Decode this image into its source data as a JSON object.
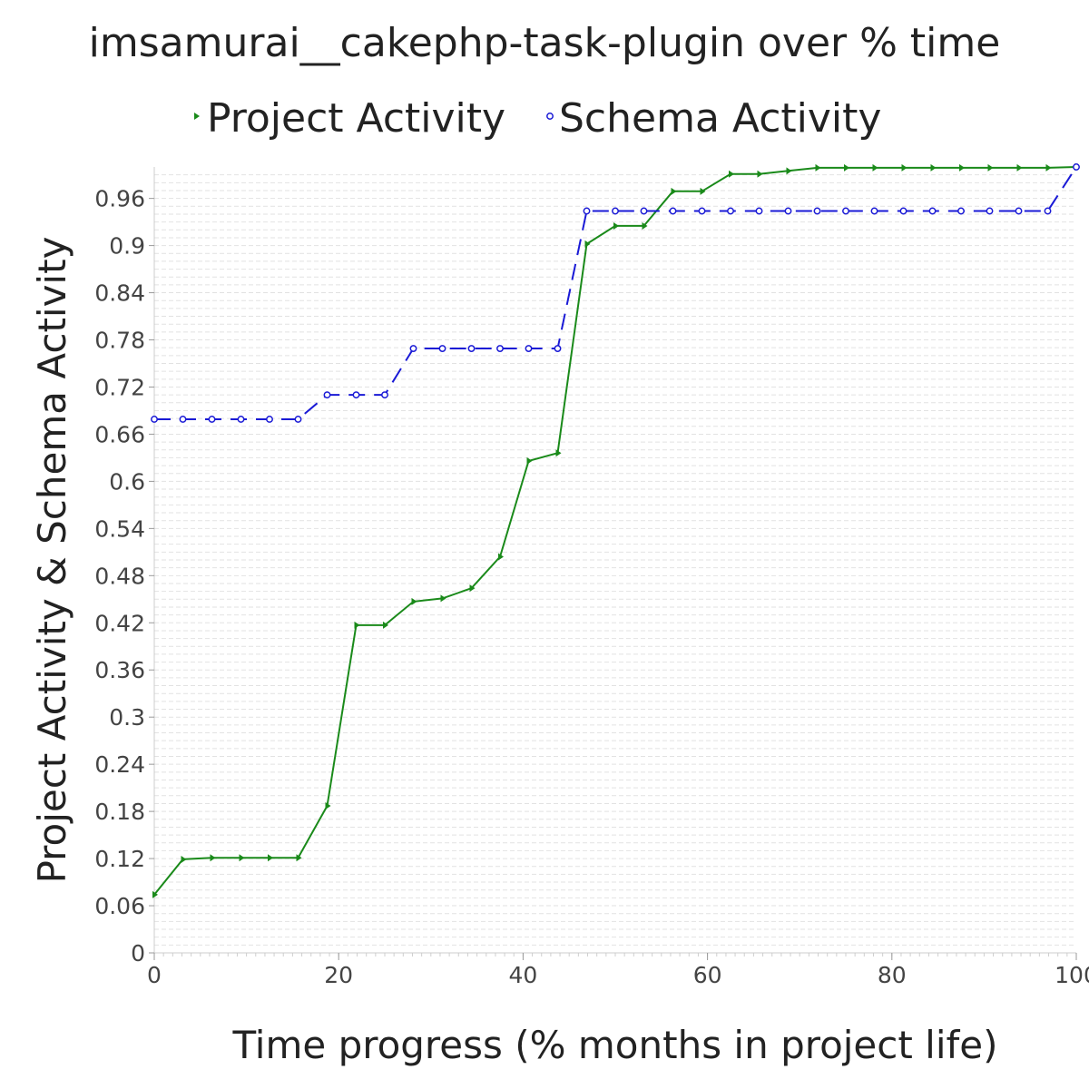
{
  "chart_data": {
    "type": "line",
    "title": "imsamurai__cakephp-task-plugin over % time",
    "xlabel": "Time progress (% months in project life)",
    "ylabel": "Project Activity & Schema Activity",
    "xlim": [
      0,
      100
    ],
    "ylim": [
      0,
      1
    ],
    "x_ticks": [
      "0",
      "20",
      "40",
      "60",
      "80",
      "100"
    ],
    "y_ticks": [
      "0",
      "0.06",
      "0.12",
      "0.18",
      "0.24",
      "0.3",
      "0.36",
      "0.42",
      "0.48",
      "0.54",
      "0.6",
      "0.66",
      "0.72",
      "0.78",
      "0.84",
      "0.9",
      "0.96"
    ],
    "legend_position": "top-center",
    "grid": "horizontal dashed minor lines",
    "series": [
      {
        "name": "Project Activity",
        "color": "#1a8a1a",
        "line_style": "solid",
        "marker": "triangle-right",
        "x": [
          0,
          3.1,
          6.25,
          9.4,
          12.5,
          15.6,
          18.75,
          21.9,
          25,
          28.1,
          31.25,
          34.4,
          37.5,
          40.6,
          43.75,
          46.9,
          50,
          53.1,
          56.25,
          59.4,
          62.5,
          65.6,
          68.75,
          71.9,
          75,
          78.1,
          81.25,
          84.4,
          87.5,
          90.6,
          93.75,
          96.9,
          100
        ],
        "y": [
          0.074,
          0.119,
          0.121,
          0.121,
          0.121,
          0.121,
          0.187,
          0.417,
          0.417,
          0.447,
          0.451,
          0.464,
          0.504,
          0.626,
          0.636,
          0.902,
          0.925,
          0.925,
          0.969,
          0.969,
          0.991,
          0.991,
          0.995,
          0.999,
          0.999,
          0.999,
          0.999,
          0.999,
          0.999,
          0.999,
          0.999,
          0.999,
          1.0
        ]
      },
      {
        "name": "Schema Activity",
        "color": "#1a1ad6",
        "line_style": "dashed",
        "marker": "circle",
        "x": [
          0,
          3.1,
          6.25,
          9.4,
          12.5,
          15.6,
          18.75,
          21.9,
          25,
          28.1,
          31.25,
          34.4,
          37.5,
          40.6,
          43.75,
          46.9,
          50,
          53.1,
          56.25,
          59.4,
          62.5,
          65.6,
          68.75,
          71.9,
          75,
          78.1,
          81.25,
          84.4,
          87.5,
          90.6,
          93.75,
          96.9,
          100
        ],
        "y": [
          0.679,
          0.679,
          0.679,
          0.679,
          0.679,
          0.679,
          0.71,
          0.71,
          0.71,
          0.769,
          0.769,
          0.769,
          0.769,
          0.769,
          0.769,
          0.944,
          0.944,
          0.944,
          0.944,
          0.944,
          0.944,
          0.944,
          0.944,
          0.944,
          0.944,
          0.944,
          0.944,
          0.944,
          0.944,
          0.944,
          0.944,
          0.944,
          1.0
        ]
      }
    ]
  }
}
